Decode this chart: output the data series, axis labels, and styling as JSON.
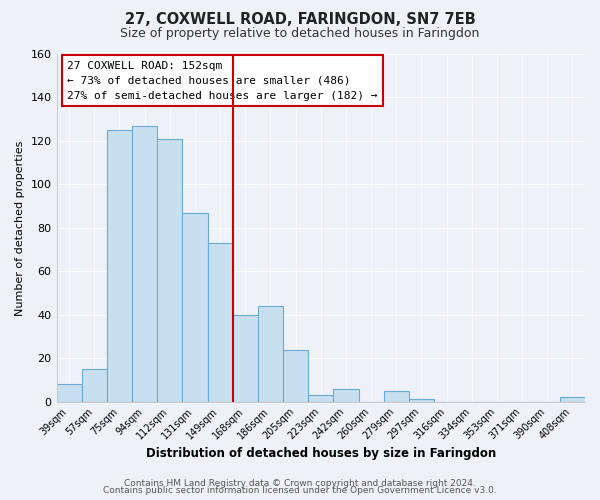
{
  "title": "27, COXWELL ROAD, FARINGDON, SN7 7EB",
  "subtitle": "Size of property relative to detached houses in Faringdon",
  "xlabel": "Distribution of detached houses by size in Faringdon",
  "ylabel": "Number of detached properties",
  "bin_labels": [
    "39sqm",
    "57sqm",
    "75sqm",
    "94sqm",
    "112sqm",
    "131sqm",
    "149sqm",
    "168sqm",
    "186sqm",
    "205sqm",
    "223sqm",
    "242sqm",
    "260sqm",
    "279sqm",
    "297sqm",
    "316sqm",
    "334sqm",
    "353sqm",
    "371sqm",
    "390sqm",
    "408sqm"
  ],
  "bar_heights": [
    8,
    15,
    125,
    127,
    121,
    87,
    73,
    40,
    44,
    24,
    3,
    6,
    0,
    5,
    1,
    0,
    0,
    0,
    0,
    0,
    2
  ],
  "bar_color": "#c8dff0",
  "bar_edge_color": "#6aaad4",
  "vline_color": "#cc0000",
  "vline_x": 6.5,
  "ylim": [
    0,
    160
  ],
  "yticks": [
    0,
    20,
    40,
    60,
    80,
    100,
    120,
    140,
    160
  ],
  "annotation_title": "27 COXWELL ROAD: 152sqm",
  "annotation_line1": "← 73% of detached houses are smaller (486)",
  "annotation_line2": "27% of semi-detached houses are larger (182) →",
  "annotation_box_facecolor": "#ffffff",
  "annotation_box_edgecolor": "#cc0000",
  "footer1": "Contains HM Land Registry data © Crown copyright and database right 2024.",
  "footer2": "Contains public sector information licensed under the Open Government Licence v3.0.",
  "background_color": "#eef2f8",
  "plot_bg_color": "#eef2f8",
  "grid_color": "#ffffff",
  "title_fontsize": 10.5,
  "subtitle_fontsize": 9,
  "ylabel_fontsize": 8,
  "xlabel_fontsize": 8.5,
  "tick_fontsize": 7,
  "footer_fontsize": 6.5,
  "annot_fontsize": 8
}
